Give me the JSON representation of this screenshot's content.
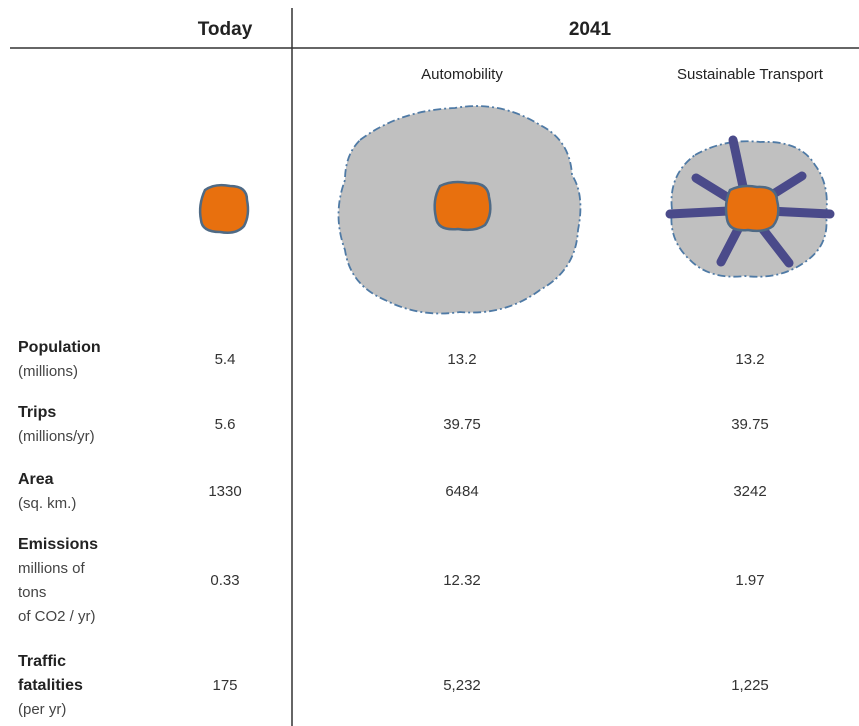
{
  "header": {
    "today": "Today",
    "future": "2041"
  },
  "scenarios": [
    "Automobility",
    "Sustainable Transport"
  ],
  "rows": [
    {
      "name": [
        "Population"
      ],
      "unit": [
        "(millions)"
      ],
      "values": [
        "5.4",
        "13.2",
        "13.2"
      ]
    },
    {
      "name": [
        "Trips"
      ],
      "unit": [
        "(millions/yr)"
      ],
      "values": [
        "5.6",
        "39.75",
        "39.75"
      ]
    },
    {
      "name": [
        "Area"
      ],
      "unit": [
        "(sq. km.)"
      ],
      "values": [
        "1330",
        "6484",
        "3242"
      ]
    },
    {
      "name": [
        "Emissions"
      ],
      "unit": [
        "millions of",
        "tons",
        "of CO2 / yr)"
      ],
      "values": [
        "0.33",
        "12.32",
        "1.97"
      ]
    },
    {
      "name": [
        "Traffic",
        "fatalities"
      ],
      "unit": [
        "(per yr)"
      ],
      "values": [
        "175",
        "5,232",
        "1,225"
      ]
    }
  ]
}
